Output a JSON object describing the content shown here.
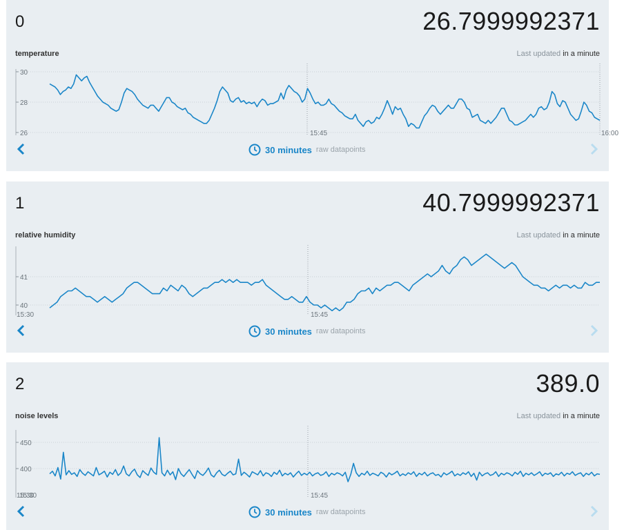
{
  "panels": [
    {
      "index": "0",
      "value": "26.7999992371",
      "name": "temperature",
      "updated_prefix": "Last updated",
      "updated_rel": "in a minute",
      "range_label": "30 minutes",
      "range_mode": "raw datapoints",
      "colors": {
        "line": "#1a86c8",
        "bg": "#e9eef2"
      },
      "chart_data": {
        "type": "line",
        "ylim": [
          25.8,
          30.3
        ],
        "yticks": [
          "30",
          "28",
          "26"
        ],
        "xticks": [
          "15:45",
          "16:00"
        ],
        "values": [
          29.2,
          29.1,
          29.0,
          28.8,
          28.5,
          28.7,
          28.8,
          29.0,
          28.9,
          29.2,
          29.8,
          29.6,
          29.4,
          29.6,
          29.7,
          29.3,
          29.0,
          28.7,
          28.4,
          28.2,
          28.0,
          27.9,
          27.8,
          27.6,
          27.5,
          27.4,
          27.5,
          28.0,
          28.6,
          28.9,
          28.8,
          28.7,
          28.5,
          28.2,
          28.0,
          27.8,
          27.7,
          27.6,
          27.8,
          27.8,
          27.6,
          27.4,
          27.7,
          28.0,
          28.3,
          28.3,
          28.0,
          27.9,
          27.7,
          27.6,
          27.5,
          27.6,
          27.3,
          27.2,
          27.0,
          26.9,
          26.8,
          26.7,
          26.6,
          26.6,
          26.8,
          27.2,
          27.6,
          28.1,
          28.7,
          29.0,
          28.8,
          28.6,
          28.1,
          28.0,
          28.2,
          28.3,
          28.0,
          28.1,
          27.9,
          28.0,
          27.9,
          28.0,
          27.7,
          28.0,
          28.2,
          28.1,
          27.8,
          27.9,
          27.9,
          28.0,
          28.1,
          28.6,
          28.2,
          28.8,
          29.1,
          28.9,
          28.7,
          28.6,
          28.4,
          28.0,
          28.2,
          28.9,
          28.6,
          28.2,
          27.9,
          28.0,
          27.8,
          27.8,
          27.9,
          28.2,
          27.9,
          27.8,
          27.6,
          27.4,
          27.3,
          27.1,
          27.0,
          26.9,
          26.9,
          27.2,
          26.8,
          26.6,
          26.4,
          26.7,
          26.8,
          26.6,
          26.7,
          27.0,
          26.9,
          27.2,
          27.6,
          28.1,
          27.7,
          27.2,
          27.7,
          27.5,
          27.6,
          27.2,
          26.9,
          26.4,
          26.6,
          26.5,
          26.3,
          26.3,
          26.7,
          27.1,
          27.3,
          27.6,
          27.8,
          27.7,
          27.4,
          27.2,
          27.4,
          27.6,
          27.8,
          27.6,
          27.6,
          27.9,
          28.2,
          28.2,
          28.0,
          27.6,
          27.5,
          27.0,
          27.1,
          27.2,
          26.8,
          26.7,
          26.6,
          26.8,
          26.6,
          26.8,
          27.0,
          27.3,
          27.6,
          27.6,
          27.2,
          26.8,
          26.7,
          26.5,
          26.5,
          26.6,
          26.7,
          26.8,
          27.0,
          27.2,
          27.0,
          27.2,
          27.6,
          27.7,
          27.5,
          27.6,
          28.0,
          28.7,
          28.5,
          27.9,
          27.7,
          28.1,
          28.0,
          27.6,
          27.2,
          27.0,
          26.8,
          26.9,
          27.4,
          28.0,
          27.8,
          27.4,
          27.3,
          27.0,
          26.9,
          26.8
        ]
      }
    },
    {
      "index": "1",
      "value": "40.7999992371",
      "name": "relative humidity",
      "updated_prefix": "Last updated",
      "updated_rel": "in a minute",
      "range_label": "30 minutes",
      "range_mode": "raw datapoints",
      "colors": {
        "line": "#1a86c8",
        "bg": "#e9eef2"
      },
      "chart_data": {
        "type": "line",
        "ylim": [
          39.75,
          41.95
        ],
        "yticks": [
          "41",
          "40"
        ],
        "xticks": [
          "15:30",
          "15:45"
        ],
        "values": [
          39.9,
          40.0,
          40.1,
          40.3,
          40.4,
          40.5,
          40.5,
          40.6,
          40.5,
          40.4,
          40.3,
          40.3,
          40.2,
          40.1,
          40.2,
          40.3,
          40.2,
          40.1,
          40.2,
          40.3,
          40.4,
          40.6,
          40.7,
          40.8,
          40.8,
          40.7,
          40.6,
          40.5,
          40.4,
          40.4,
          40.4,
          40.6,
          40.5,
          40.7,
          40.6,
          40.5,
          40.7,
          40.6,
          40.4,
          40.3,
          40.4,
          40.5,
          40.6,
          40.6,
          40.7,
          40.8,
          40.8,
          40.9,
          40.8,
          40.9,
          40.8,
          40.9,
          40.8,
          40.8,
          40.8,
          40.7,
          40.8,
          40.8,
          40.9,
          40.7,
          40.6,
          40.5,
          40.4,
          40.3,
          40.2,
          40.2,
          40.3,
          40.2,
          40.1,
          40.1,
          40.3,
          40.1,
          40.0,
          40.0,
          39.9,
          40.0,
          39.9,
          39.8,
          39.9,
          39.8,
          39.9,
          40.1,
          40.1,
          40.2,
          40.4,
          40.5,
          40.5,
          40.6,
          40.4,
          40.6,
          40.5,
          40.6,
          40.7,
          40.7,
          40.8,
          40.8,
          40.7,
          40.6,
          40.5,
          40.7,
          40.8,
          40.9,
          41.0,
          41.1,
          41.0,
          41.1,
          41.2,
          41.4,
          41.2,
          41.1,
          41.3,
          41.4,
          41.6,
          41.7,
          41.6,
          41.4,
          41.5,
          41.6,
          41.7,
          41.8,
          41.7,
          41.6,
          41.5,
          41.4,
          41.3,
          41.4,
          41.5,
          41.4,
          41.2,
          41.0,
          40.9,
          40.8,
          40.7,
          40.7,
          40.6,
          40.6,
          40.5,
          40.6,
          40.7,
          40.6,
          40.7,
          40.7,
          40.6,
          40.7,
          40.6,
          40.6,
          40.8,
          40.7,
          40.7,
          40.8,
          40.8
        ]
      }
    },
    {
      "index": "2",
      "value": "389.0",
      "name": "noise levels",
      "updated_prefix": "Last updated",
      "updated_rel": "in a minute",
      "range_label": "30 minutes",
      "range_mode": "raw datapoints",
      "colors": {
        "line": "#1a86c8",
        "bg": "#e9eef2"
      },
      "chart_data": {
        "type": "line",
        "ylim": [
          352,
          460
        ],
        "yticks": [
          "450",
          "400"
        ],
        "xticks": [
          "15:30",
          "15:30",
          "15:45"
        ],
        "values": [
          390,
          395,
          386,
          402,
          380,
          431,
          388,
          396,
          389,
          392,
          385,
          398,
          391,
          387,
          394,
          390,
          386,
          402,
          388,
          391,
          395,
          384,
          393,
          389,
          398,
          387,
          392,
          405,
          390,
          386,
          394,
          399,
          388,
          383,
          396,
          391,
          387,
          401,
          393,
          389,
          459,
          392,
          386,
          397,
          388,
          394,
          379,
          400,
          390,
          385,
          392,
          398,
          389,
          381,
          396,
          390,
          387,
          393,
          401,
          388,
          384,
          392,
          397,
          389,
          386,
          391,
          395,
          388,
          390,
          418,
          387,
          393,
          389,
          384,
          394,
          391,
          388,
          396,
          386,
          392,
          390,
          385,
          393,
          389,
          397,
          386,
          391,
          388,
          392,
          384,
          390,
          395,
          387,
          391,
          388,
          393,
          386,
          390,
          392,
          387,
          389,
          394,
          385,
          391,
          388,
          392,
          390,
          386,
          393,
          375,
          389,
          410,
          392,
          385,
          391,
          388,
          395,
          387,
          391,
          389,
          386,
          393,
          390,
          384,
          392,
          388,
          391,
          395,
          386,
          390,
          387,
          392,
          389,
          394,
          385,
          391,
          388,
          393,
          386,
          390,
          392,
          387,
          389,
          384,
          392,
          388,
          391,
          395,
          386,
          390,
          387,
          392,
          389,
          394,
          385,
          391,
          378,
          393,
          386,
          390,
          392,
          387,
          389,
          394,
          385,
          391,
          388,
          392,
          390,
          386,
          393,
          389,
          395,
          385,
          391,
          388,
          392,
          387,
          390,
          394,
          386,
          391,
          389,
          392,
          385,
          390,
          388,
          393,
          386,
          391,
          389,
          394,
          387,
          390,
          392,
          385,
          391,
          388,
          393,
          386,
          390,
          389
        ]
      }
    }
  ]
}
